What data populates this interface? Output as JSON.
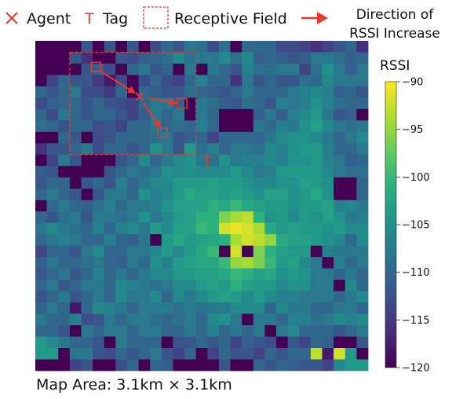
{
  "legend": {
    "agent_label": "Agent",
    "tag_label": "Tag",
    "field_label": "Receptive Field",
    "direction_line1": "Direction of",
    "direction_line2": "RSSI Increase",
    "accent_color": "#e8392a"
  },
  "caption": "Map Area: 3.1km × 3.1km",
  "chart_data": {
    "type": "heatmap",
    "title": "",
    "colorbar_label": "RSSI",
    "colorbar_ticks": [
      "−90",
      "−95",
      "−100",
      "−105",
      "−110",
      "−115",
      "−120"
    ],
    "colorbar_tick_values": [
      -90,
      -95,
      -100,
      -105,
      -110,
      -115,
      -120
    ],
    "vmin": -120,
    "vmax": -90,
    "colormap": "viridis",
    "grid": false,
    "rows": 29,
    "cols": 29,
    "note_values": "approximate RSSI values read from cell colors; row 0 = top",
    "values": [
      [
        -120,
        -120,
        -120,
        -110,
        -112,
        -118,
        -112,
        -120,
        -112,
        -110,
        -113,
        -110,
        -112,
        -108,
        -109,
        -113,
        -109,
        -110,
        -110,
        -110,
        -110,
        -113,
        -113,
        -114,
        -116,
        -114,
        -112,
        -110,
        -116
      ],
      [
        -120,
        -120,
        -116,
        -112,
        -116,
        -118,
        -120,
        -112,
        -113,
        -111,
        -110,
        -109,
        -106,
        -109,
        -108,
        -108,
        -106,
        -109,
        -106,
        -111,
        -110,
        -111,
        -112,
        -111,
        -108,
        -108,
        -109,
        -111,
        -110
      ],
      [
        -120,
        -120,
        -120,
        -120,
        -112,
        -111,
        -113,
        -117,
        -110,
        -108,
        -112,
        -110,
        -109,
        -108,
        -108,
        -108,
        -110,
        -112,
        -107,
        -109,
        -109,
        -108,
        -108,
        -114,
        -109,
        -105,
        -108,
        -111,
        -108
      ],
      [
        -119,
        -114,
        -110,
        -112,
        -112,
        -115,
        -118,
        -113,
        -112,
        -113,
        -110,
        -113,
        -114,
        -110,
        -107,
        -110,
        -110,
        -116,
        -108,
        -112,
        -110,
        -112,
        -112,
        -109,
        -110,
        -106,
        -108,
        -108,
        -108
      ],
      [
        -110,
        -112,
        -110,
        -108,
        -113,
        -113,
        -115,
        -110,
        -110,
        -110,
        -111,
        -112,
        -112,
        -109,
        -110,
        -111,
        -112,
        -110,
        -108,
        -110,
        -110,
        -110,
        -108,
        -107,
        -106,
        -107,
        -111,
        -110,
        -112
      ],
      [
        -113,
        -111,
        -110,
        -110,
        -112,
        -110,
        -112,
        -113,
        -114,
        -110,
        -108,
        -108,
        -111,
        -118,
        -108,
        -109,
        -111,
        -112,
        -109,
        -110,
        -112,
        -107,
        -108,
        -107,
        -105,
        -107,
        -109,
        -110,
        -110
      ],
      [
        -110,
        -113,
        -108,
        -110,
        -112,
        -110,
        -110,
        -112,
        -114,
        -111,
        -108,
        -110,
        -108,
        -118,
        -108,
        -110,
        -120,
        -120,
        -120,
        -111,
        -108,
        -111,
        -107,
        -106,
        -104,
        -108,
        -112,
        -111,
        -110
      ],
      [
        -109,
        -110,
        -112,
        -110,
        -110,
        -113,
        -112,
        -114,
        -110,
        -110,
        -108,
        -110,
        -109,
        -110,
        -107,
        -110,
        -120,
        -120,
        -120,
        -108,
        -110,
        -107,
        -108,
        -105,
        -103,
        -106,
        -108,
        -109,
        -108
      ],
      [
        -120,
        -120,
        -110,
        -112,
        -118,
        -113,
        -112,
        -110,
        -110,
        -110,
        -109,
        -108,
        -112,
        -111,
        -110,
        -114,
        -110,
        -110,
        -110,
        -110,
        -108,
        -106,
        -105,
        -105,
        -106,
        -108,
        -110,
        -108,
        -106
      ],
      [
        -116,
        -112,
        -112,
        -110,
        -108,
        -113,
        -110,
        -110,
        -112,
        -110,
        -105,
        -108,
        -112,
        -104,
        -109,
        -107,
        -110,
        -108,
        -108,
        -109,
        -106,
        -107,
        -105,
        -104,
        -104,
        -107,
        -110,
        -110,
        -108
      ],
      [
        -120,
        -114,
        -108,
        -112,
        -120,
        -120,
        -120,
        -112,
        -110,
        -106,
        -110,
        -108,
        -106,
        -105,
        -108,
        -109,
        -105,
        -108,
        -107,
        -107,
        -106,
        -107,
        -105,
        -105,
        -104,
        -107,
        -108,
        -111,
        -110
      ],
      [
        -111,
        -112,
        -116,
        -113,
        -120,
        -120,
        -112,
        -110,
        -108,
        -109,
        -108,
        -105,
        -106,
        -105,
        -106,
        -106,
        -106,
        -104,
        -106,
        -108,
        -107,
        -104,
        -104,
        -104,
        -104,
        -106,
        -108,
        -109,
        -109
      ],
      [
        -112,
        -110,
        -110,
        -112,
        -112,
        -110,
        -112,
        -107,
        -110,
        -108,
        -106,
        -106,
        -104,
        -104,
        -104,
        -103,
        -104,
        -104,
        -105,
        -106,
        -106,
        -105,
        -105,
        -103,
        -104,
        -105,
        -120,
        -120,
        -110
      ],
      [
        -110,
        -108,
        -110,
        -112,
        -114,
        -112,
        -108,
        -108,
        -110,
        -105,
        -107,
        -106,
        -104,
        -102,
        -103,
        -103,
        -104,
        -103,
        -104,
        -105,
        -103,
        -103,
        -105,
        -104,
        -102,
        -105,
        -120,
        -120,
        -110
      ],
      [
        -110,
        -110,
        -108,
        -110,
        -111,
        -109,
        -107,
        -110,
        -108,
        -108,
        -107,
        -105,
        -103,
        -103,
        -103,
        -101,
        -102,
        -100,
        -102,
        -103,
        -104,
        -104,
        -105,
        -104,
        -104,
        -103,
        -107,
        -106,
        -108
      ],
      [
        -110,
        -112,
        -109,
        -108,
        -112,
        -108,
        -108,
        -109,
        -108,
        -105,
        -108,
        -106,
        -104,
        -103,
        -101,
        -101,
        -96,
        -94,
        -93,
        -101,
        -105,
        -104,
        -106,
        -104,
        -105,
        -103,
        -105,
        -108,
        -107
      ],
      [
        -108,
        -106,
        -108,
        -109,
        -110,
        -107,
        -110,
        -107,
        -106,
        -108,
        -104,
        -106,
        -103,
        -103,
        -100,
        -101,
        -92,
        -91,
        -92,
        -94,
        -102,
        -104,
        -103,
        -104,
        -104,
        -105,
        -104,
        -106,
        -106
      ],
      [
        -110,
        -108,
        -107,
        -108,
        -110,
        -110,
        -107,
        -110,
        -111,
        -108,
        -118,
        -104,
        -102,
        -104,
        -103,
        -102,
        -101,
        -94,
        -92,
        -93,
        -95,
        -102,
        -103,
        -103,
        -104,
        -105,
        -106,
        -110,
        -106
      ],
      [
        -114,
        -110,
        -110,
        -112,
        -108,
        -106,
        -110,
        -110,
        -108,
        -108,
        -106,
        -104,
        -106,
        -104,
        -102,
        -100,
        -120,
        -92,
        -120,
        -96,
        -101,
        -103,
        -104,
        -104,
        -106,
        -107,
        -108,
        -108,
        -108
      ],
      [
        -111,
        -108,
        -110,
        -110,
        -109,
        -108,
        -110,
        -111,
        -108,
        -110,
        -105,
        -107,
        -104,
        -103,
        -102,
        -102,
        -100,
        -95,
        -94,
        -96,
        -100,
        -104,
        -103,
        -106,
        -108,
        -107,
        -107,
        -110,
        -108
      ],
      [
        -112,
        -110,
        -108,
        -112,
        -110,
        -107,
        -110,
        -108,
        -110,
        -108,
        -106,
        -106,
        -104,
        -104,
        -103,
        -103,
        -102,
        -100,
        -101,
        -103,
        -102,
        -105,
        -104,
        -105,
        -108,
        -108,
        -110,
        -108,
        -110
      ],
      [
        -110,
        -108,
        -112,
        -110,
        -108,
        -108,
        -110,
        -106,
        -107,
        -108,
        -109,
        -108,
        -106,
        -106,
        -104,
        -103,
        -104,
        -101,
        -103,
        -104,
        -104,
        -106,
        -105,
        -105,
        -108,
        -108,
        -120,
        -106,
        -110
      ],
      [
        -112,
        -110,
        -108,
        -112,
        -110,
        -108,
        -110,
        -106,
        -108,
        -108,
        -106,
        -110,
        -106,
        -108,
        -106,
        -104,
        -103,
        -104,
        -106,
        -104,
        -106,
        -107,
        -107,
        -108,
        -108,
        -108,
        -110,
        -108,
        -106
      ],
      [
        -110,
        -108,
        -110,
        -108,
        -110,
        -106,
        -107,
        -108,
        -110,
        -108,
        -108,
        -108,
        -109,
        -108,
        -109,
        -108,
        -108,
        -106,
        -106,
        -106,
        -110,
        -106,
        -108,
        -108,
        -110,
        -110,
        -108,
        -108,
        -110
      ],
      [
        -108,
        -110,
        -110,
        -107,
        -113,
        -112,
        -108,
        -110,
        -108,
        -108,
        -109,
        -110,
        -109,
        -108,
        -110,
        -106,
        -105,
        -108,
        -107,
        -108,
        -108,
        -110,
        -107,
        -107,
        -109,
        -108,
        -106,
        -107,
        -106
      ],
      [
        -110,
        -110,
        -112,
        -112,
        -108,
        -110,
        -108,
        -108,
        -110,
        -108,
        -108,
        -110,
        -110,
        -108,
        -110,
        -107,
        -110,
        -108,
        -110,
        -108,
        -112,
        -108,
        -106,
        -110,
        -110,
        -110,
        -112,
        -110,
        -108
      ],
      [
        -104,
        -106,
        -108,
        -110,
        -110,
        -112,
        -110,
        -108,
        -110,
        -110,
        -110,
        -114,
        -112,
        -112,
        -110,
        -112,
        -110,
        -114,
        -111,
        -112,
        -113,
        -112,
        -112,
        -114,
        -110,
        -111,
        -116,
        -114,
        -112
      ],
      [
        -104,
        -104,
        -106,
        -108,
        -108,
        -112,
        -113,
        -110,
        -112,
        -110,
        -108,
        -112,
        -114,
        -110,
        -120,
        -114,
        -110,
        -112,
        -112,
        -114,
        -110,
        -112,
        -110,
        -110,
        -112,
        -118,
        -114,
        -104,
        -106
      ],
      [
        -108,
        -106,
        -110,
        -114,
        -112,
        -108,
        -114,
        -113,
        -110,
        -112,
        -110,
        -111,
        -108,
        -110,
        -114,
        -113,
        -112,
        -110,
        -112,
        -110,
        -112,
        -110,
        -111,
        -112,
        -112,
        -114,
        -106,
        -104,
        -104
      ]
    ],
    "hotspot_overrides": [
      [
        27,
        26,
        -92
      ],
      [
        27,
        24,
        -93
      ],
      [
        6,
        28,
        -120
      ],
      [
        23,
        3,
        -118
      ]
    ],
    "extra_dark_cells": [
      [
        26,
        6
      ],
      [
        26,
        21
      ],
      [
        26,
        11
      ],
      [
        27,
        14
      ],
      [
        27,
        2
      ],
      [
        28,
        0
      ],
      [
        28,
        1
      ],
      [
        28,
        2
      ],
      [
        28,
        5
      ],
      [
        28,
        6
      ],
      [
        28,
        9
      ],
      [
        28,
        12
      ],
      [
        28,
        13
      ],
      [
        28,
        14
      ],
      [
        28,
        15
      ],
      [
        28,
        17
      ],
      [
        28,
        18
      ],
      [
        25,
        20
      ],
      [
        26,
        26
      ],
      [
        26,
        27
      ],
      [
        27,
        28
      ],
      [
        24,
        18
      ],
      [
        25,
        3
      ],
      [
        18,
        24
      ],
      [
        19,
        25
      ],
      [
        13,
        26
      ],
      [
        13,
        27
      ],
      [
        12,
        26
      ],
      [
        12,
        27
      ],
      [
        10,
        4
      ],
      [
        10,
        5
      ],
      [
        11,
        4
      ],
      [
        10,
        6
      ],
      [
        6,
        16
      ],
      [
        6,
        17
      ],
      [
        7,
        16
      ],
      [
        7,
        17
      ],
      [
        5,
        13
      ],
      [
        6,
        13
      ],
      [
        3,
        8
      ],
      [
        4,
        8
      ],
      [
        2,
        12
      ],
      [
        2,
        14
      ],
      [
        0,
        2
      ],
      [
        0,
        3
      ],
      [
        0,
        5
      ],
      [
        1,
        5
      ],
      [
        1,
        6
      ],
      [
        2,
        7
      ],
      [
        3,
        0
      ],
      [
        2,
        0
      ],
      [
        1,
        0
      ],
      [
        1,
        1
      ],
      [
        0,
        0
      ],
      [
        0,
        1
      ],
      [
        2,
        1
      ],
      [
        2,
        2
      ],
      [
        2,
        3
      ],
      [
        0,
        7
      ],
      [
        0,
        9
      ],
      [
        1,
        2
      ],
      [
        8,
        0
      ],
      [
        8,
        1
      ],
      [
        10,
        0
      ],
      [
        11,
        2
      ],
      [
        11,
        3
      ],
      [
        8,
        4
      ],
      [
        12,
        3
      ],
      [
        13,
        4
      ],
      [
        14,
        0
      ],
      [
        17,
        10
      ],
      [
        18,
        16
      ],
      [
        18,
        18
      ],
      [
        0,
        17
      ]
    ],
    "annotations": {
      "receptive_field_cells": {
        "row_start": 1,
        "row_end": 10,
        "col_start": 3,
        "col_end": 14
      },
      "agent_cell": [
        4.9,
        9.1
      ],
      "tag_cell": [
        10.6,
        15.0
      ],
      "probe_cells": [
        [
          2.3,
          5.3
        ],
        [
          5.5,
          12.8
        ],
        [
          8.1,
          11.1
        ]
      ]
    }
  }
}
